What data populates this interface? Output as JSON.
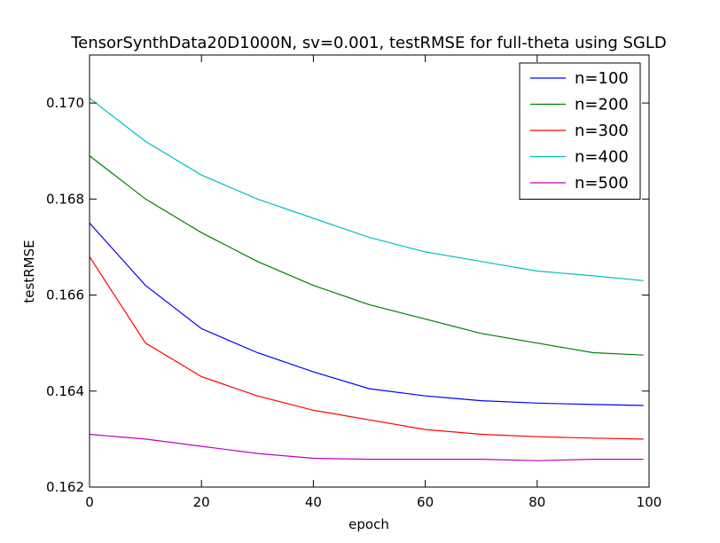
{
  "chart_data": {
    "type": "line",
    "title": "TensorSynthData20D1000N, sv=0.001, testRMSE for full-theta using SGLD",
    "xlabel": "epoch",
    "ylabel": "testRMSE",
    "xlim": [
      0,
      100
    ],
    "ylim": [
      0.162,
      0.171
    ],
    "xticks": [
      0,
      20,
      40,
      60,
      80,
      100
    ],
    "xtick_labels": [
      "0",
      "20",
      "40",
      "60",
      "80",
      "100"
    ],
    "yticks": [
      0.162,
      0.164,
      0.166,
      0.168,
      0.17
    ],
    "ytick_labels": [
      "0.162",
      "0.164",
      "0.166",
      "0.168",
      "0.170"
    ],
    "grid": false,
    "legend_position": "top-right",
    "x": [
      0,
      10,
      20,
      30,
      40,
      50,
      60,
      70,
      80,
      90,
      99
    ],
    "series": [
      {
        "name": "n=100",
        "color": "#0000ff",
        "values": [
          0.1675,
          0.1662,
          0.1653,
          0.1648,
          0.1644,
          0.16405,
          0.1639,
          0.1638,
          0.16375,
          0.16372,
          0.1637
        ]
      },
      {
        "name": "n=200",
        "color": "#008000",
        "values": [
          0.1689,
          0.168,
          0.1673,
          0.1667,
          0.1662,
          0.1658,
          0.1655,
          0.1652,
          0.165,
          0.1648,
          0.16475
        ]
      },
      {
        "name": "n=300",
        "color": "#ff0000",
        "values": [
          0.1668,
          0.165,
          0.1643,
          0.1639,
          0.1636,
          0.1634,
          0.1632,
          0.1631,
          0.16305,
          0.16302,
          0.163
        ]
      },
      {
        "name": "n=400",
        "color": "#00bfbf",
        "values": [
          0.1701,
          0.1692,
          0.1685,
          0.168,
          0.1676,
          0.1672,
          0.1669,
          0.1667,
          0.1665,
          0.1664,
          0.1663
        ]
      },
      {
        "name": "n=500",
        "color": "#bf00bf",
        "values": [
          0.1631,
          0.163,
          0.16285,
          0.1627,
          0.1626,
          0.16258,
          0.16258,
          0.16258,
          0.16255,
          0.16258,
          0.16258
        ]
      }
    ]
  }
}
